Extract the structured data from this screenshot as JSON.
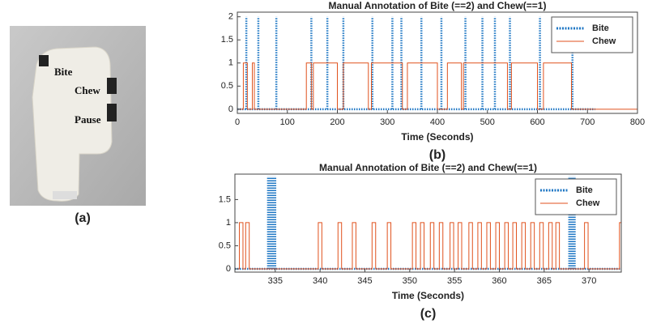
{
  "photo": {
    "labels": [
      "Bite",
      "Chew",
      "Pause"
    ],
    "caption": "(a)"
  },
  "chart_data": [
    {
      "type": "line",
      "title": "Manual Annotation of Bite (==2) and Chew(==1)",
      "x_label": "Time (Seconds)",
      "caption": "(b)",
      "xlim": [
        0,
        800
      ],
      "xticks": [
        0,
        100,
        200,
        300,
        400,
        500,
        600,
        700,
        800
      ],
      "ylim": [
        -0.09,
        2.1
      ],
      "yticks": [
        0,
        0.5,
        1,
        1.5,
        2
      ],
      "legend": "upper right",
      "series": [
        {
          "name": "Bite",
          "kind": "stem",
          "color": "#1f77c4",
          "x": [
            0,
            18,
            42,
            78,
            148,
            180,
            212,
            270,
            310,
            328,
            368,
            408,
            456,
            490,
            515,
            545,
            605,
            670,
            715
          ],
          "values": [
            0,
            2,
            2,
            2,
            2,
            2,
            2,
            2,
            2,
            2,
            2,
            2,
            2,
            2,
            2,
            2,
            2,
            2,
            0
          ]
        },
        {
          "name": "Chew",
          "kind": "step",
          "color": "#e0521e",
          "x": [
            0,
            12,
            20,
            30,
            34,
            138,
            148,
            152,
            200,
            212,
            262,
            268,
            330,
            340,
            400,
            420,
            448,
            452,
            540,
            548,
            600,
            612,
            668,
            715
          ],
          "values": [
            0,
            1,
            0,
            1,
            0,
            1,
            0,
            1,
            0,
            1,
            0,
            1,
            0,
            1,
            0,
            1,
            0,
            1,
            0,
            1,
            0,
            1,
            0,
            0
          ]
        }
      ]
    },
    {
      "type": "line",
      "title": "Manual Annotation of Bite (==2) and Chew(==1)",
      "x_label": "Time (Seconds)",
      "caption": "(c)",
      "xlim": [
        330.5,
        373.6
      ],
      "xticks": [
        335,
        340,
        345,
        350,
        355,
        360,
        365,
        370
      ],
      "ylim": [
        -0.07,
        2.05
      ],
      "yticks": [
        0,
        0.5,
        1,
        1.5
      ],
      "legend": "upper right",
      "series": [
        {
          "name": "Bite",
          "kind": "stem",
          "color": "#1f77c4",
          "x": [
            330.5,
            334.2,
            334.4,
            334.6,
            334.8,
            335.0,
            367.8,
            368.0,
            368.2,
            368.4,
            373.6
          ],
          "values": [
            0,
            2,
            2,
            2,
            2,
            2,
            2,
            2,
            2,
            2,
            0
          ]
        },
        {
          "name": "Chew",
          "kind": "step",
          "color": "#e0521e",
          "x": [
            330.5,
            331.0,
            331.4,
            331.7,
            332.1,
            339.8,
            340.2,
            342.0,
            342.4,
            343.6,
            344.0,
            345.8,
            346.2,
            347.5,
            347.9,
            350.3,
            350.7,
            351.2,
            351.6,
            352.3,
            352.7,
            353.3,
            353.7,
            354.5,
            354.9,
            355.4,
            355.8,
            356.6,
            357.0,
            357.6,
            358.0,
            358.6,
            359.0,
            359.6,
            360.0,
            360.6,
            361.0,
            361.5,
            361.9,
            362.5,
            362.9,
            363.5,
            363.9,
            364.5,
            364.9,
            365.5,
            365.9,
            366.3,
            366.7,
            369.5,
            369.9,
            373.4
          ],
          "values": [
            0,
            1,
            0,
            1,
            0,
            1,
            0,
            1,
            0,
            1,
            0,
            1,
            0,
            1,
            0,
            1,
            0,
            1,
            0,
            1,
            0,
            1,
            0,
            1,
            0,
            1,
            0,
            1,
            0,
            1,
            0,
            1,
            0,
            1,
            0,
            1,
            0,
            1,
            0,
            1,
            0,
            1,
            0,
            1,
            0,
            1,
            0,
            1,
            0,
            1,
            0,
            1
          ]
        }
      ]
    }
  ]
}
